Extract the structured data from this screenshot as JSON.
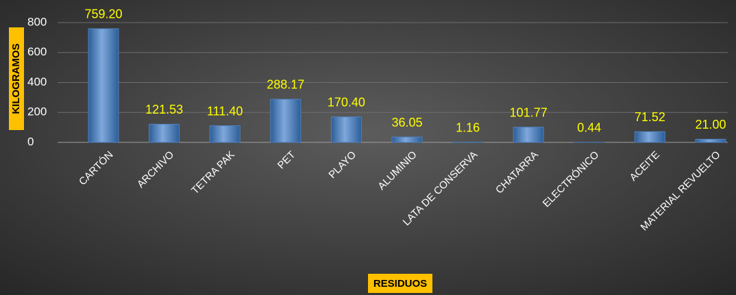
{
  "chart_data": {
    "type": "bar",
    "x_label": "RESIDUOS",
    "y_label": "KILOGRAMOS",
    "categories": [
      "CARTÓN",
      "ARCHIVO",
      "TETRA PAK",
      "PET",
      "PLAYO",
      "ALUMINIO",
      "LATA DE CONSERVA",
      "CHATARRA",
      "ELECTRÓNICO",
      "ACEITE",
      "MATERIAL REVUELTO"
    ],
    "values": [
      759.2,
      121.53,
      111.4,
      288.17,
      170.4,
      36.05,
      1.16,
      101.77,
      0.44,
      71.52,
      21.0
    ],
    "value_labels": [
      "759.20",
      "121.53",
      "111.40",
      "288.17",
      "170.40",
      "36.05",
      "1.16",
      "101.77",
      "0.44",
      "71.52",
      "21.00"
    ],
    "color": "#4f81bd",
    "ylim": [
      0,
      800
    ],
    "yticks": [
      0,
      200,
      400,
      600,
      800
    ],
    "grid": true
  }
}
